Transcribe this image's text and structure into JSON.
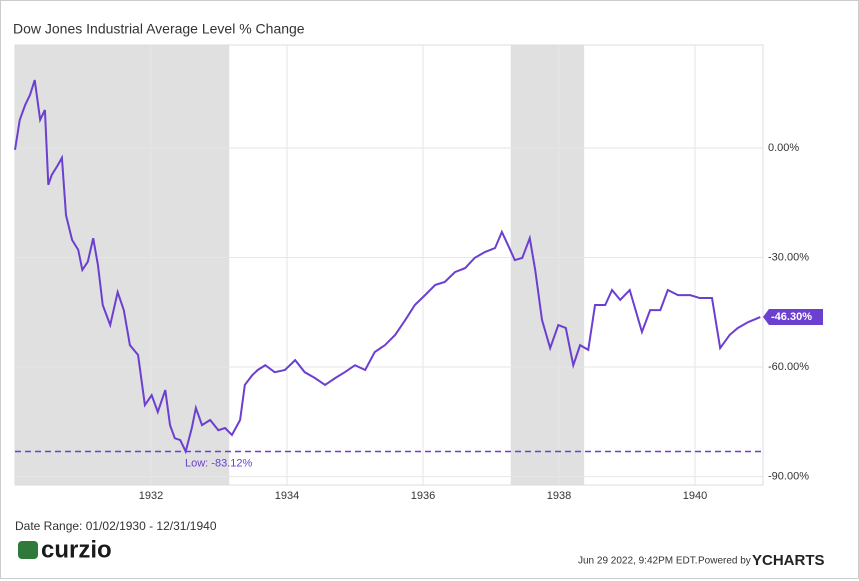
{
  "chart_data": {
    "type": "line",
    "title": "Dow Jones Industrial Average Level % Change",
    "xlim": [
      1930,
      1941
    ],
    "xticks": [
      1932,
      1934,
      1936,
      1938,
      1940
    ],
    "ylim": [
      -92.3,
      28.2
    ],
    "yticks": [
      {
        "value": 0,
        "label": "0.00%"
      },
      {
        "value": -30,
        "label": "-30.00%"
      },
      {
        "value": -60,
        "label": "-60.00%"
      },
      {
        "value": -90,
        "label": "-90.00%"
      }
    ],
    "grid": true,
    "shaded_ranges": [
      [
        1930.0,
        1933.15
      ],
      [
        1937.29,
        1938.37
      ]
    ],
    "shade_color": "#e0e0e0",
    "series": [
      {
        "name": "Dow Jones Industrial Average Level % Change",
        "color": "#6b3fd0",
        "x": [
          1930.0,
          1930.07,
          1930.15,
          1930.22,
          1930.29,
          1930.37,
          1930.44,
          1930.49,
          1930.54,
          1930.63,
          1930.69,
          1930.75,
          1930.84,
          1930.93,
          1930.99,
          1931.07,
          1931.15,
          1931.22,
          1931.29,
          1931.4,
          1931.51,
          1931.6,
          1931.69,
          1931.81,
          1931.91,
          1932.01,
          1932.1,
          1932.21,
          1932.28,
          1932.35,
          1932.43,
          1932.51,
          1932.6,
          1932.66,
          1932.75,
          1932.87,
          1932.99,
          1933.09,
          1933.19,
          1933.31,
          1933.38,
          1933.49,
          1933.57,
          1933.68,
          1933.82,
          1933.97,
          1934.12,
          1934.26,
          1934.41,
          1934.56,
          1934.71,
          1934.85,
          1935.0,
          1935.15,
          1935.29,
          1935.44,
          1935.59,
          1935.74,
          1935.88,
          1936.03,
          1936.18,
          1936.32,
          1936.47,
          1936.62,
          1936.76,
          1936.91,
          1937.06,
          1937.16,
          1937.25,
          1937.35,
          1937.46,
          1937.57,
          1937.65,
          1937.75,
          1937.87,
          1937.99,
          1938.1,
          1938.21,
          1938.31,
          1938.43,
          1938.53,
          1938.68,
          1938.78,
          1938.9,
          1939.04,
          1939.22,
          1939.34,
          1939.49,
          1939.6,
          1939.75,
          1939.93,
          1940.07,
          1940.25,
          1940.37,
          1940.51,
          1940.63,
          1940.78,
          1940.96
        ],
        "values": [
          -0.5,
          7.7,
          11.8,
          14.5,
          18.6,
          7.7,
          10.4,
          -10.1,
          -7.4,
          -4.7,
          -2.7,
          -18.4,
          -25.2,
          -27.9,
          -33.4,
          -31.2,
          -24.7,
          -32.1,
          -43.0,
          -48.5,
          -39.5,
          -44.4,
          -54.0,
          -56.7,
          -70.4,
          -67.7,
          -72.3,
          -66.3,
          -75.9,
          -79.5,
          -80.0,
          -83.12,
          -76.7,
          -71.2,
          -75.9,
          -74.5,
          -77.3,
          -76.7,
          -78.6,
          -74.5,
          -64.9,
          -62.2,
          -60.8,
          -59.5,
          -61.4,
          -60.8,
          -58.1,
          -61.4,
          -63.0,
          -64.9,
          -63.0,
          -61.4,
          -59.5,
          -60.8,
          -55.9,
          -54.0,
          -51.2,
          -47.1,
          -43.0,
          -40.3,
          -37.5,
          -36.7,
          -34.0,
          -32.9,
          -30.1,
          -28.5,
          -27.4,
          -23.0,
          -26.6,
          -30.7,
          -30.1,
          -24.7,
          -33.4,
          -47.1,
          -54.8,
          -48.5,
          -49.3,
          -59.5,
          -54.0,
          -55.3,
          -43.0,
          -43.0,
          -38.9,
          -41.6,
          -38.9,
          -50.4,
          -44.4,
          -44.4,
          -38.9,
          -40.3,
          -40.3,
          -41.1,
          -41.1,
          -54.8,
          -51.2,
          -49.3,
          -47.7,
          -46.3
        ]
      }
    ],
    "low": {
      "value": -83.12,
      "label": "Low: -83.12%"
    },
    "last_label": {
      "value": -46.3,
      "label": "-46.30%"
    }
  },
  "footer": {
    "date_range": "Date Range: 01/02/1930 - 12/31/1940",
    "logo": "curzio",
    "timestamp": "Jun 29 2022, 9:42PM EDT.",
    "powered_by": "Powered by",
    "brand": "YCHARTS"
  }
}
